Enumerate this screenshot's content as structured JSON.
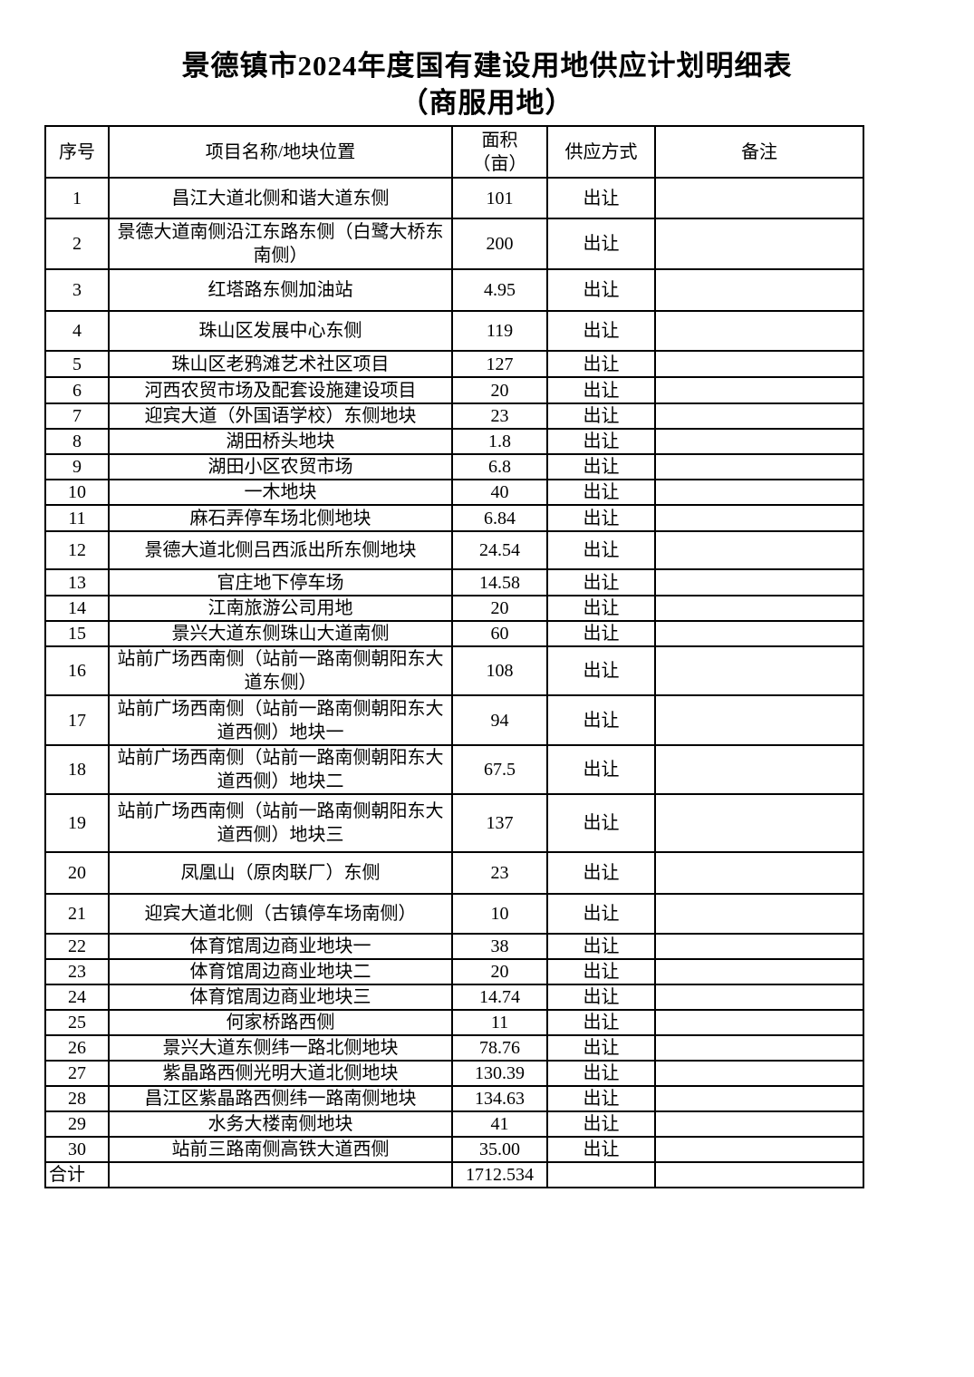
{
  "title": {
    "line1": "景德镇市2024年度国有建设用地供应计划明细表",
    "line2": "（商服用地）"
  },
  "table": {
    "headers": [
      "序号",
      "项目名称/地块位置",
      "面积\n（亩）",
      "供应方式",
      "备注"
    ],
    "rows": [
      {
        "no": "1",
        "name": "昌江大道北侧和谐大道东侧",
        "area": "101",
        "method": "出让",
        "note": ""
      },
      {
        "no": "2",
        "name": "景德大道南侧沿江东路东侧（白鹭大桥东南侧）",
        "area": "200",
        "method": "出让",
        "note": ""
      },
      {
        "no": "3",
        "name": "红塔路东侧加油站",
        "area": "4.95",
        "method": "出让",
        "note": ""
      },
      {
        "no": "4",
        "name": "珠山区发展中心东侧",
        "area": "119",
        "method": "出让",
        "note": ""
      },
      {
        "no": "5",
        "name": "珠山区老鸦滩艺术社区项目",
        "area": "127",
        "method": "出让",
        "note": ""
      },
      {
        "no": "6",
        "name": "河西农贸市场及配套设施建设项目",
        "area": "20",
        "method": "出让",
        "note": ""
      },
      {
        "no": "7",
        "name": "迎宾大道（外国语学校）东侧地块",
        "area": "23",
        "method": "出让",
        "note": ""
      },
      {
        "no": "8",
        "name": "湖田桥头地块",
        "area": "1.8",
        "method": "出让",
        "note": ""
      },
      {
        "no": "9",
        "name": "湖田小区农贸市场",
        "area": "6.8",
        "method": "出让",
        "note": ""
      },
      {
        "no": "10",
        "name": "一木地块",
        "area": "40",
        "method": "出让",
        "note": ""
      },
      {
        "no": "11",
        "name": "麻石弄停车场北侧地块",
        "area": "6.84",
        "method": "出让",
        "note": ""
      },
      {
        "no": "12",
        "name": "景德大道北侧吕西派出所东侧地块",
        "area": "24.54",
        "method": "出让",
        "note": ""
      },
      {
        "no": "13",
        "name": "官庄地下停车场",
        "area": "14.58",
        "method": "出让",
        "note": ""
      },
      {
        "no": "14",
        "name": "江南旅游公司用地",
        "area": "20",
        "method": "出让",
        "note": ""
      },
      {
        "no": "15",
        "name": "景兴大道东侧珠山大道南侧",
        "area": "60",
        "method": "出让",
        "note": ""
      },
      {
        "no": "16",
        "name": "站前广场西南侧（站前一路南侧朝阳东大道东侧）",
        "area": "108",
        "method": "出让",
        "note": ""
      },
      {
        "no": "17",
        "name": "站前广场西南侧（站前一路南侧朝阳东大道西侧）地块一",
        "area": "94",
        "method": "出让",
        "note": ""
      },
      {
        "no": "18",
        "name": "站前广场西南侧（站前一路南侧朝阳东大道西侧）地块二",
        "area": "67.5",
        "method": "出让",
        "note": ""
      },
      {
        "no": "19",
        "name": "站前广场西南侧（站前一路南侧朝阳东大道西侧）地块三",
        "area": "137",
        "method": "出让",
        "note": ""
      },
      {
        "no": "20",
        "name": "凤凰山（原肉联厂）东侧",
        "area": "23",
        "method": "出让",
        "note": ""
      },
      {
        "no": "21",
        "name": "迎宾大道北侧（古镇停车场南侧）",
        "area": "10",
        "method": "出让",
        "note": ""
      },
      {
        "no": "22",
        "name": "体育馆周边商业地块一",
        "area": "38",
        "method": "出让",
        "note": ""
      },
      {
        "no": "23",
        "name": "体育馆周边商业地块二",
        "area": "20",
        "method": "出让",
        "note": ""
      },
      {
        "no": "24",
        "name": "体育馆周边商业地块三",
        "area": "14.74",
        "method": "出让",
        "note": ""
      },
      {
        "no": "25",
        "name": "何家桥路西侧",
        "area": "11",
        "method": "出让",
        "note": ""
      },
      {
        "no": "26",
        "name": "景兴大道东侧纬一路北侧地块",
        "area": "78.76",
        "method": "出让",
        "note": ""
      },
      {
        "no": "27",
        "name": "紫晶路西侧光明大道北侧地块",
        "area": "130.39",
        "method": "出让",
        "note": ""
      },
      {
        "no": "28",
        "name": "昌江区紫晶路西侧纬一路南侧地块",
        "area": "134.63",
        "method": "出让",
        "note": ""
      },
      {
        "no": "29",
        "name": "水务大楼南侧地块",
        "area": "41",
        "method": "出让",
        "note": ""
      },
      {
        "no": "30",
        "name": "站前三路南侧高铁大道西侧",
        "area": "35.00",
        "method": "出让",
        "note": ""
      }
    ],
    "total_row": {
      "no": "合计",
      "name": "",
      "area": "1712.534",
      "method": "",
      "note": ""
    }
  }
}
